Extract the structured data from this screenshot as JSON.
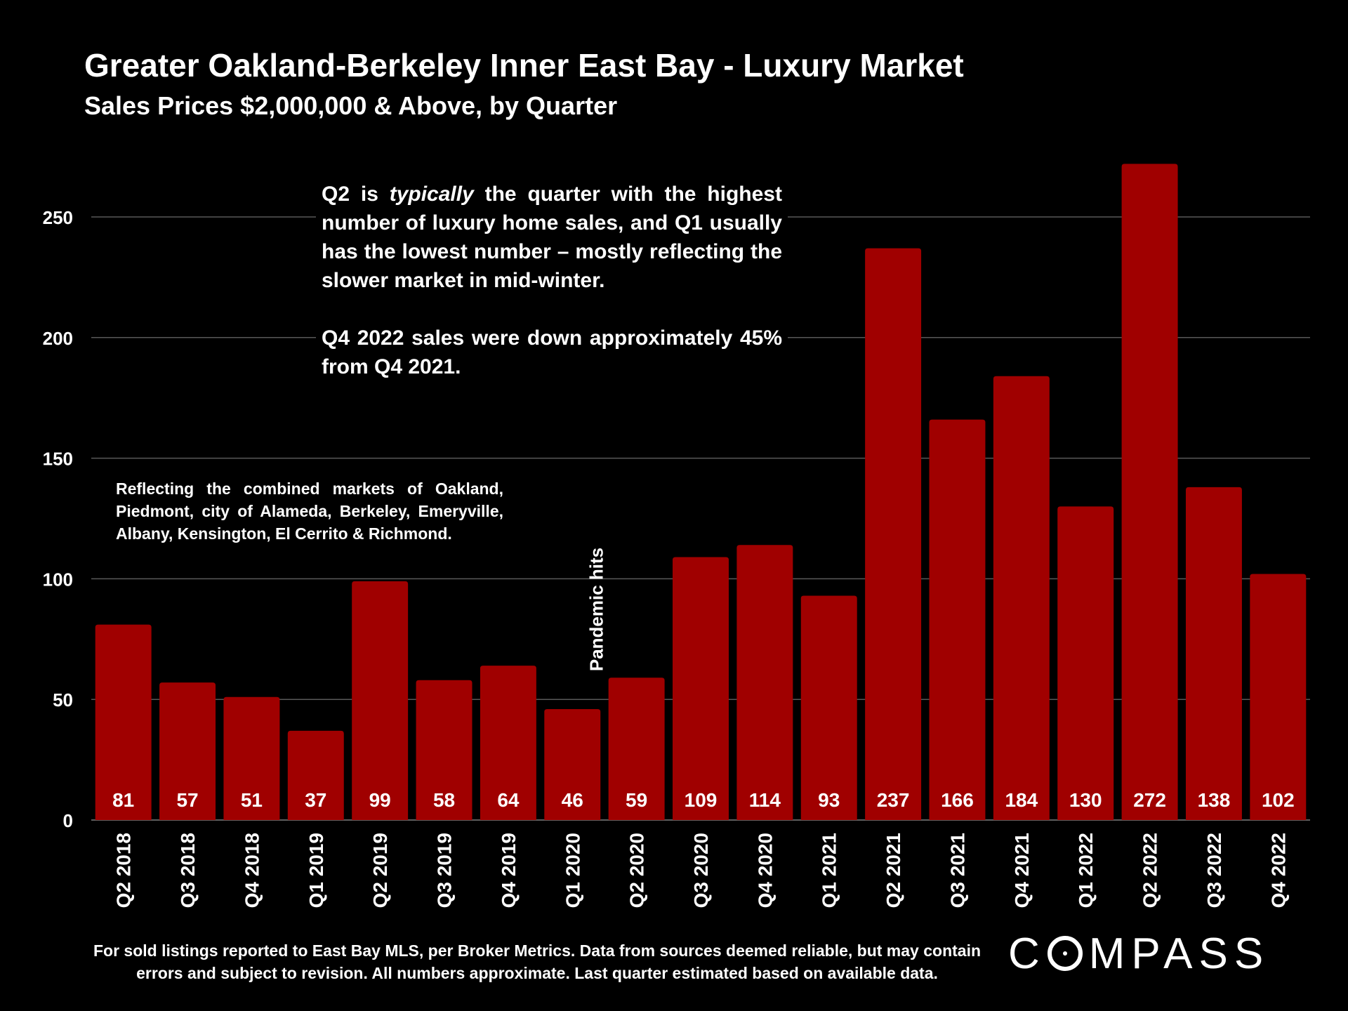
{
  "title": "Greater Oakland-Berkeley Inner East Bay - Luxury Market",
  "subtitle": "Sales Prices $2,000,000 & Above, by Quarter",
  "callout": {
    "p1_a": "Q2 is ",
    "p1_em": "typically",
    "p1_b": " the quarter with the highest number of luxury home sales, and Q1 usually has the lowest number – mostly reflecting the slower market in mid-winter.",
    "p2": "Q4 2022 sales were down approximately 45% from Q4 2021."
  },
  "markets_note": "Reflecting the combined markets of Oakland, Piedmont, city of Alameda, Berkeley, Emeryville, Albany, Kensington, El Cerrito & Richmond.",
  "pandemic_label": "Pandemic hits",
  "footnote": "For sold listings reported to East Bay MLS, per Broker Metrics. Data from sources deemed reliable, but may contain errors and subject to revision. All numbers approximate. Last quarter estimated based on available data.",
  "logo_text_a": "C",
  "logo_text_b": "MPASS",
  "colors": {
    "bar": "#a00000",
    "background": "#000000",
    "grid": "#595959",
    "text": "#ffffff"
  },
  "chart_data": {
    "type": "bar",
    "categories": [
      "Q2 2018",
      "Q3 2018",
      "Q4 2018",
      "Q1 2019",
      "Q2 2019",
      "Q3 2019",
      "Q4 2019",
      "Q1 2020",
      "Q2 2020",
      "Q3 2020",
      "Q4 2020",
      "Q1 2021",
      "Q2 2021",
      "Q3 2021",
      "Q4 2021",
      "Q1 2022",
      "Q2 2022",
      "Q3 2022",
      "Q4 2022"
    ],
    "values": [
      81,
      57,
      51,
      37,
      99,
      58,
      64,
      46,
      59,
      109,
      114,
      93,
      237,
      166,
      184,
      130,
      272,
      138,
      102
    ],
    "yticks": [
      0,
      50,
      100,
      150,
      200,
      250
    ],
    "ylim": [
      0,
      275
    ],
    "grid": true,
    "data_labels": true,
    "annotation": "Pandemic hits",
    "annotation_category": "Q1 2020"
  }
}
